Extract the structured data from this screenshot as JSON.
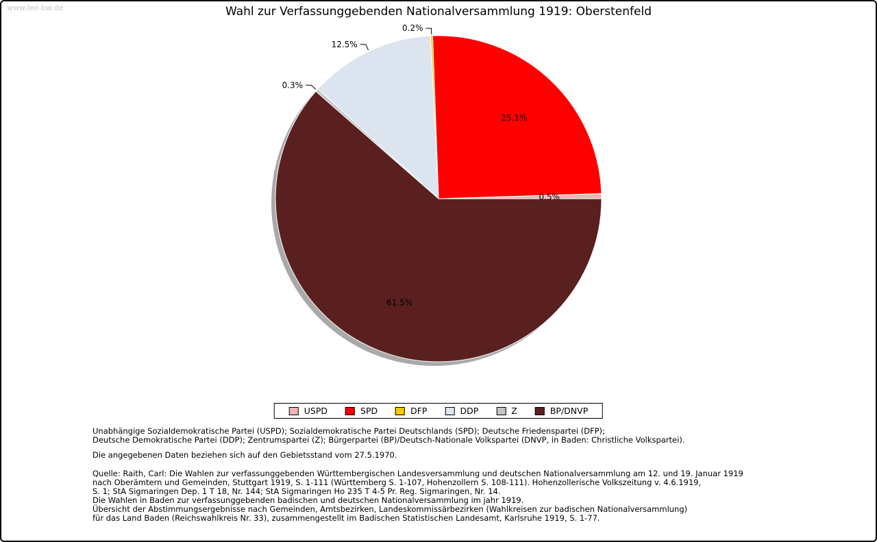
{
  "watermark": "www.leo-bw.de",
  "chart_data": {
    "type": "pie",
    "title": "Wahl zur Verfassunggebenden Nationalversammlung 1919: Oberstenfeld",
    "unit": "%",
    "legend_position": "bottom",
    "start_angle_deg": 0,
    "direction": "counterclockwise",
    "slices": [
      {
        "label": "USPD",
        "value": 0.5,
        "pct_label": "0.5%",
        "color": "#f0b4b4",
        "label_placement": "inside"
      },
      {
        "label": "SPD",
        "value": 25.1,
        "pct_label": "25.1%",
        "color": "#ff0000",
        "label_placement": "inside"
      },
      {
        "label": "DFP",
        "value": 0.2,
        "pct_label": "0.2%",
        "color": "#fdc800",
        "label_placement": "outside"
      },
      {
        "label": "DDP",
        "value": 12.5,
        "pct_label": "12.5%",
        "color": "#dce4f0",
        "label_placement": "outside"
      },
      {
        "label": "Z",
        "value": 0.3,
        "pct_label": "0.3%",
        "color": "#c3c3c3",
        "label_placement": "outside"
      },
      {
        "label": "BP/DNVP",
        "value": 61.5,
        "pct_label": "61.5%",
        "color": "#5a2020",
        "label_placement": "inside"
      }
    ]
  },
  "notes": {
    "party_lines": [
      "Unabhängige Sozialdemokratische Partei (USPD); Sozialdemokratische Partei Deutschlands (SPD); Deutsche Friedenspartei (DFP);",
      "Deutsche Demokratische Partei (DDP); Zentrumspartei (Z); Bürgerpartei (BP)/Deutsch-Nationale Volkspartei (DNVP, in Baden: Christliche Volkspartei)."
    ],
    "data_note": "Die angegebenen Daten beziehen sich auf den Gebietsstand vom 27.5.1970.",
    "source_lines": [
      "Quelle: Raith, Carl: Die Wahlen zur verfassunggebenden Württembergischen Landesversammlung und deutschen Nationalversammlung am 12. und 19. Januar 1919",
      "nach Oberämtern und Gemeinden, Stuttgart 1919, S. 1-111 (Württemberg S. 1-107, Hohenzollern S. 108-111). Hohenzollerische Volkszeitung v. 4.6.1919,",
      "S. 1; StA Sigmaringen Dep. 1 T 18, Nr. 144; StA Sigmaringen Ho 235 T 4-5 Pr. Reg. Sigmaringen, Nr. 14.",
      "Die Wahlen in Baden zur verfassunggebenden badischen und deutschen Nationalversammlung im jahr 1919.",
      "Übersicht der Abstimmungsergebnisse nach Gemeinden, Amtsbezirken, Landeskommissärbezirken (Wahlkreisen zur badischen Nationalversammlung)",
      "für das Land Baden (Reichswahlkreis Nr. 33), zusammengestellt im Badischen Statistischen Landesamt, Karlsruhe 1919, S. 1-77."
    ]
  }
}
